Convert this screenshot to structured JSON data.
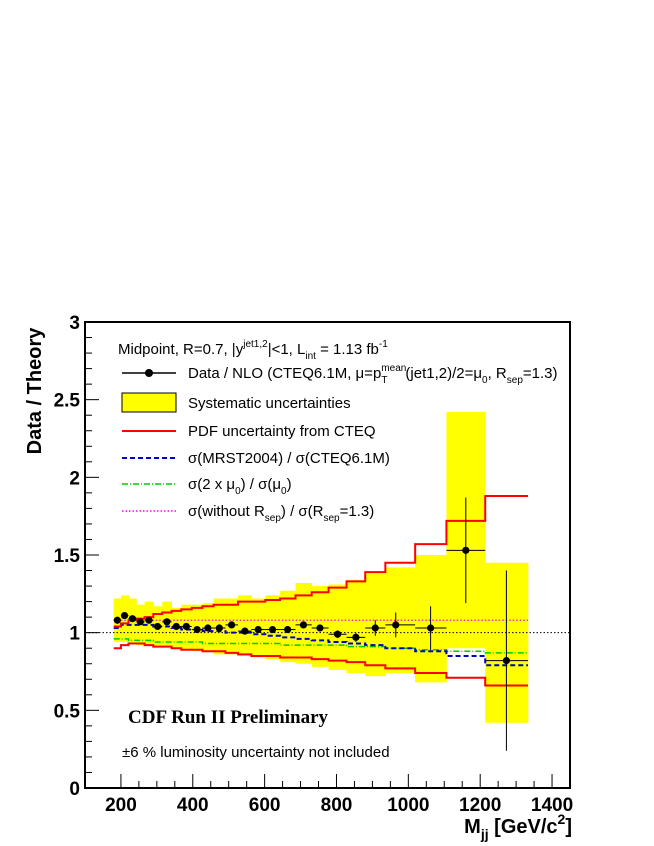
{
  "chart_data": {
    "type": "step-ratio",
    "ylabel": "Data / Theory",
    "xlabel": {
      "main": "M",
      "sub": "jj",
      "unit_pre": " [GeV/c",
      "sup": "2",
      "unit_post": "]"
    },
    "xlim": [
      100,
      1450
    ],
    "ylim": [
      0,
      3
    ],
    "x_ticks": [
      200,
      400,
      600,
      800,
      1000,
      1200,
      1400
    ],
    "y_ticks": [
      {
        "v": 0,
        "label": "0"
      },
      {
        "v": 0.5,
        "label": "0.5"
      },
      {
        "v": 1,
        "label": "1"
      },
      {
        "v": 1.5,
        "label": "1.5"
      },
      {
        "v": 2,
        "label": "2"
      },
      {
        "v": 2.5,
        "label": "2.5"
      },
      {
        "v": 3,
        "label": "3"
      }
    ],
    "bin_edges": [
      180,
      200,
      221,
      243,
      266,
      290,
      315,
      341,
      368,
      397,
      427,
      458,
      491,
      526,
      563,
      602,
      643,
      686,
      731,
      778,
      828,
      880,
      936,
      1019,
      1106,
      1214,
      1333
    ],
    "data": {
      "name": "Data / NLO (CTEQ6.1M, μ=p_T^mean(jet1,2)/2=μ_0, R_sep=1.3)",
      "x": [
        190,
        210,
        232,
        254,
        278,
        302,
        328,
        354,
        382,
        412,
        442,
        474,
        508,
        545,
        582,
        622,
        664,
        708,
        754,
        803,
        854,
        908,
        965,
        1062,
        1160,
        1273
      ],
      "y": [
        1.08,
        1.11,
        1.09,
        1.07,
        1.08,
        1.04,
        1.07,
        1.04,
        1.04,
        1.02,
        1.03,
        1.03,
        1.05,
        1.01,
        1.02,
        1.02,
        1.02,
        1.05,
        1.03,
        0.99,
        0.97,
        1.03,
        1.05,
        1.03,
        1.53,
        0.82
      ],
      "yerr": [
        0.01,
        0.01,
        0.01,
        0.01,
        0.01,
        0.01,
        0.01,
        0.01,
        0.01,
        0.01,
        0.01,
        0.01,
        0.01,
        0.01,
        0.01,
        0.01,
        0.015,
        0.02,
        0.02,
        0.025,
        0.03,
        0.05,
        0.08,
        0.14,
        0.34,
        0.58
      ],
      "style": "black filled circles with error bars"
    },
    "systematic_band": {
      "name": "Systematic uncertainties",
      "color": "#ffff00",
      "upper": [
        1.22,
        1.24,
        1.22,
        1.18,
        1.2,
        1.17,
        1.2,
        1.16,
        1.18,
        1.18,
        1.19,
        1.22,
        1.22,
        1.24,
        1.22,
        1.24,
        1.27,
        1.32,
        1.3,
        1.31,
        1.34,
        1.38,
        1.42,
        1.5,
        2.42,
        1.45
      ],
      "lower": [
        0.94,
        0.94,
        0.93,
        0.92,
        0.92,
        0.91,
        0.91,
        0.9,
        0.89,
        0.88,
        0.88,
        0.86,
        0.86,
        0.85,
        0.84,
        0.83,
        0.81,
        0.8,
        0.78,
        0.76,
        0.74,
        0.72,
        0.74,
        0.68,
        0.9,
        0.42
      ]
    },
    "pdf_band": {
      "name": "PDF uncertainty from CTEQ",
      "color": "#ff0000",
      "upper": [
        1.04,
        1.06,
        1.08,
        1.09,
        1.1,
        1.12,
        1.13,
        1.14,
        1.15,
        1.16,
        1.17,
        1.18,
        1.18,
        1.2,
        1.2,
        1.21,
        1.22,
        1.24,
        1.26,
        1.29,
        1.33,
        1.39,
        1.45,
        1.57,
        1.72,
        1.88
      ],
      "lower": [
        0.9,
        0.92,
        0.93,
        0.93,
        0.92,
        0.91,
        0.91,
        0.9,
        0.89,
        0.89,
        0.88,
        0.88,
        0.87,
        0.86,
        0.85,
        0.85,
        0.84,
        0.84,
        0.83,
        0.82,
        0.81,
        0.79,
        0.77,
        0.74,
        0.71,
        0.66
      ]
    },
    "mrst": {
      "name": "σ(MRST2004) / σ(CTEQ6.1M)",
      "color": "#0000cc",
      "style": "dashed",
      "values": [
        1.03,
        1.05,
        1.05,
        1.05,
        1.05,
        1.04,
        1.04,
        1.03,
        1.02,
        1.02,
        1.01,
        1.01,
        1.0,
        1.0,
        0.99,
        0.98,
        0.97,
        0.96,
        0.95,
        0.94,
        0.93,
        0.92,
        0.9,
        0.88,
        0.85,
        0.79
      ]
    },
    "scale": {
      "name": "σ(2 x μ_0) / σ(μ_0)",
      "color": "#00cc00",
      "style": "dash-dot",
      "values": [
        0.96,
        0.96,
        0.95,
        0.95,
        0.95,
        0.94,
        0.94,
        0.94,
        0.94,
        0.94,
        0.93,
        0.93,
        0.93,
        0.93,
        0.93,
        0.93,
        0.92,
        0.92,
        0.92,
        0.92,
        0.91,
        0.91,
        0.9,
        0.89,
        0.88,
        0.87
      ]
    },
    "rsep": {
      "name": "σ(without R_sep) / σ(R_sep=1.3)",
      "color": "#ff00ff",
      "style": "dotted",
      "values": [
        1.08,
        1.08,
        1.08,
        1.08,
        1.08,
        1.08,
        1.08,
        1.08,
        1.08,
        1.08,
        1.08,
        1.08,
        1.08,
        1.08,
        1.08,
        1.08,
        1.08,
        1.08,
        1.08,
        1.08,
        1.08,
        1.08,
        1.08,
        1.08,
        1.08,
        1.08
      ]
    },
    "reference_line": 1,
    "legend_header": "Midpoint, R=0.7, |y^jet1,2|<1, L_int = 1.13 fb^-1",
    "preliminary_label": "CDF Run II Preliminary",
    "luminosity_note": "±6 % luminosity uncertainty not included",
    "legend_placement": "top-left"
  },
  "legend": {
    "header": {
      "t1": "Midpoint, R=0.7, |y",
      "s1": "jet1,2",
      "t2": "|<1, L",
      "s2": "int",
      "t3": " = 1.13 fb",
      "s3": "-1"
    },
    "data": {
      "t1": "Data / NLO (CTEQ6.1M, μ=p",
      "sup1": "mean",
      "sub1": "T",
      "t2": "(jet1,2)/2=μ",
      "sub2": "0",
      "t3": ", R",
      "sub3": "sep",
      "t4": "=1.3)"
    },
    "syst": "Systematic uncertainties",
    "pdf": "PDF uncertainty from CTEQ",
    "mrst": "σ(MRST2004) / σ(CTEQ6.1M)",
    "scale": {
      "t1": "σ(2 x μ",
      "sub1": "0",
      "t2": ") / σ(μ",
      "sub2": "0",
      "t3": ")"
    },
    "rsep": {
      "t1": "σ(without R",
      "sub1": "sep",
      "t2": ") / σ(R",
      "sub2": "sep",
      "t3": "=1.3)"
    }
  }
}
